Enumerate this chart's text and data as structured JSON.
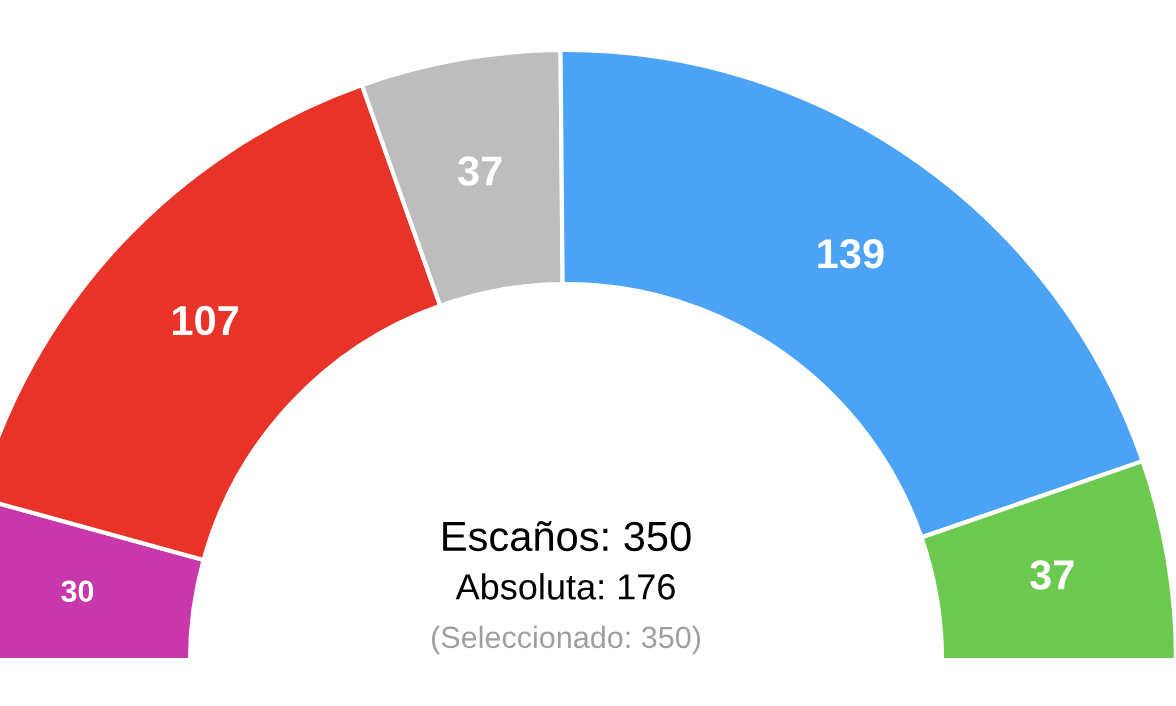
{
  "chart_data": {
    "type": "donut",
    "categories": [
      null,
      null,
      null,
      null,
      null
    ],
    "values": [
      30,
      107,
      37,
      139,
      37
    ],
    "colors": [
      "#c837ab",
      "#e83428",
      "#bdbdbd",
      "#4aa3f5",
      "#6cc94f"
    ],
    "data_labels": true,
    "annotations": [
      "Escaños: 350",
      "Absoluta: 176",
      "(Seleccionado: 350)"
    ]
  }
}
